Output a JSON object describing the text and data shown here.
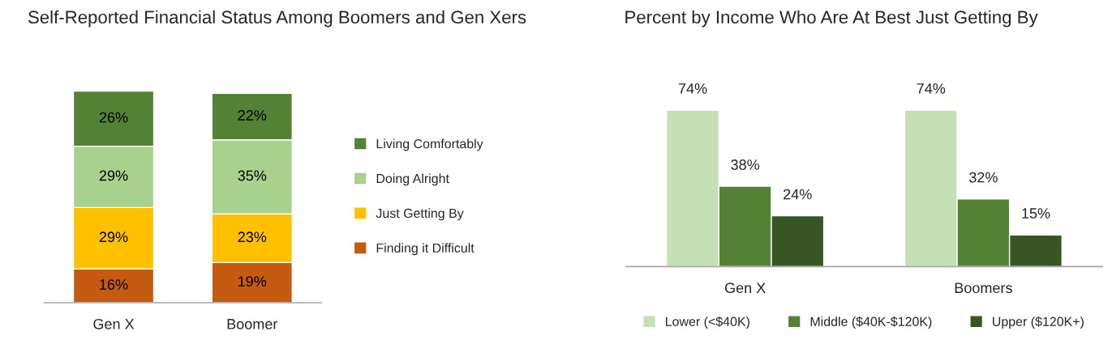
{
  "chart_data": [
    {
      "type": "bar",
      "title": "Self-Reported Financial Status Among Boomers and Gen Xers",
      "categories": [
        "Gen X",
        "Boomer"
      ],
      "stacked": true,
      "legend": "right",
      "tick_labels": "x",
      "series": [
        {
          "name": "Finding it Difficult",
          "color": "#c55a11",
          "values": [
            16,
            19
          ],
          "value_labels": [
            "16%",
            "19%"
          ]
        },
        {
          "name": "Just Getting By",
          "color": "#ffc000",
          "values": [
            29,
            23
          ],
          "value_labels": [
            "29%",
            "23%"
          ]
        },
        {
          "name": "Doing Alright",
          "color": "#a9d18e",
          "values": [
            29,
            35
          ],
          "value_labels": [
            "29%",
            "35%"
          ]
        },
        {
          "name": "Living Comfortably",
          "color": "#548235",
          "values": [
            26,
            22
          ],
          "value_labels": [
            "26%",
            "22%"
          ]
        }
      ]
    },
    {
      "type": "bar",
      "title": "Percent by Income Who Are At Best Just Getting By",
      "categories": [
        "Gen X",
        "Boomers"
      ],
      "legend": "bottom",
      "tick_labels": "x",
      "series": [
        {
          "name": "Lower (<$40K)",
          "color": "#c5e0b4",
          "values": [
            74,
            74
          ],
          "value_labels": [
            "74%",
            "74%"
          ]
        },
        {
          "name": "Middle ($40K-$120K)",
          "color": "#548235",
          "values": [
            38,
            32
          ],
          "value_labels": [
            "38%",
            "32%"
          ]
        },
        {
          "name": "Upper ($120K+)",
          "color": "#375623",
          "values": [
            24,
            15
          ],
          "value_labels": [
            "24%",
            "15%"
          ]
        }
      ]
    }
  ]
}
